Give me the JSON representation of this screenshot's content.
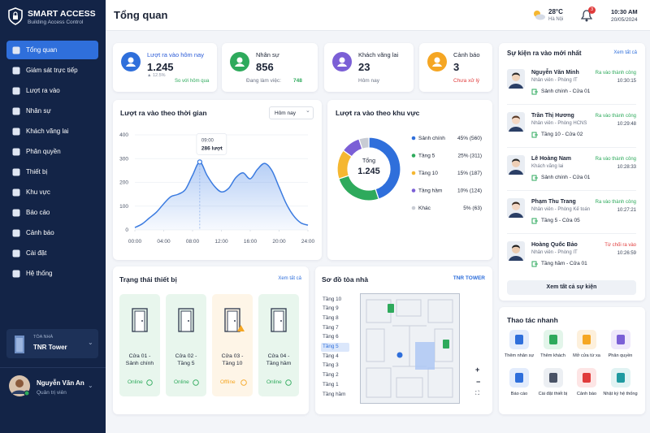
{
  "sidebar": {
    "brand": "SMART ACCESS",
    "tagline": "Building Access Control",
    "menu": [
      "Tổng quan",
      "Giám sát trực tiếp",
      "Lượt ra vào",
      "Nhân sự",
      "Khách vãng lai",
      "Phân quyền",
      "Thiết bị",
      "Khu vực",
      "Báo cáo",
      "Cảnh báo",
      "Cài đặt",
      "Hệ thống"
    ],
    "building_label": "TÒA NHÀ",
    "building": "TNR Tower",
    "user": {
      "name": "Nguyễn Văn An",
      "role": "Quản trị viên"
    }
  },
  "header": {
    "title": "Tổng quan",
    "temperature": "28°C",
    "city": "Hà Nội",
    "notifications": "3",
    "time": "10:30 AM",
    "date": "20/05/2024"
  },
  "stats": [
    {
      "label": "Lượt ra vào hôm nay",
      "value": "1.245",
      "delta": "▲ 12.5%",
      "note": "So với hôm qua"
    },
    {
      "label": "Nhân sự",
      "value": "856",
      "note": "Đang làm việc:",
      "note_value": "748"
    },
    {
      "label": "Khách vãng lai",
      "value": "23",
      "note": "Hôm nay"
    },
    {
      "label": "Cảnh báo",
      "value": "3",
      "note": "Chưa xử lý"
    }
  ],
  "chart_data": [
    {
      "type": "line",
      "title": "Lượt ra vào theo thời gian",
      "filter": "Hôm nay",
      "x": [
        0,
        1,
        2,
        3,
        4,
        5,
        6,
        7,
        8,
        9,
        10,
        11,
        12,
        13,
        14,
        15,
        16,
        17,
        18,
        19,
        20,
        21,
        22,
        23,
        24
      ],
      "series": [
        {
          "color": "#3b7be0",
          "values": [
            10,
            25,
            50,
            75,
            110,
            140,
            150,
            170,
            230,
            286,
            230,
            185,
            160,
            175,
            220,
            240,
            215,
            255,
            280,
            250,
            180,
            110,
            60,
            30,
            20
          ]
        }
      ],
      "xlim": [
        0,
        24
      ],
      "xticks": [
        {
          "value": 0,
          "label": "00:00"
        },
        {
          "value": 4,
          "label": "04:00"
        },
        {
          "value": 8,
          "label": "08:00"
        },
        {
          "value": 12,
          "label": "12:00"
        },
        {
          "value": 16,
          "label": "16:00"
        },
        {
          "value": 20,
          "label": "20:00"
        },
        {
          "value": 24,
          "label": "24:00"
        }
      ],
      "ylim": [
        0,
        400
      ],
      "yticks": [
        0,
        100,
        200,
        300,
        400
      ],
      "grid": true,
      "annotation": {
        "x": 9,
        "title": "09:00",
        "text": "286 lượt"
      }
    },
    {
      "type": "pie",
      "title": "Lượt ra vào theo khu vực",
      "categories": [
        "Sảnh chính",
        "Tầng 5",
        "Tầng 10",
        "Tầng hầm",
        "Khác"
      ],
      "values": [
        560,
        311,
        187,
        124,
        63
      ],
      "value_labels": [
        "45% (560)",
        "25% (311)",
        "15% (187)",
        "10% (124)",
        "5% (63)"
      ],
      "colors": [
        "#2f6fdb",
        "#2eaa5c",
        "#f5b731",
        "#7b5fd6",
        "#c8ccd4"
      ],
      "center_label": "Tổng",
      "center_value": "1.245"
    }
  ],
  "events": {
    "title": "Sự kiện ra vào mới nhất",
    "link": "Xem tất cả",
    "button": "Xem tất cả sự kiện",
    "items": [
      {
        "name": "Nguyễn Văn Minh",
        "role": "Nhân viên - Phòng IT",
        "door": "Sảnh chính - Cửa 01",
        "status": "Ra vào thành công",
        "color": "#2eaa5c",
        "time": "10:30:15"
      },
      {
        "name": "Trần Thị Hương",
        "role": "Nhân viên - Phòng HCNS",
        "door": "Tầng 10 - Cửa 02",
        "status": "Ra vào thành công",
        "color": "#2eaa5c",
        "time": "10:29:48"
      },
      {
        "name": "Lê Hoàng Nam",
        "role": "Khách vãng lai",
        "door": "Sảnh chính - Cửa 01",
        "status": "Ra vào thành công",
        "color": "#2eaa5c",
        "time": "10:28:33"
      },
      {
        "name": "Phạm Thu Trang",
        "role": "Nhân viên - Phòng Kế toán",
        "door": "Tầng 5 - Cửa 05",
        "status": "Ra vào thành công",
        "color": "#2eaa5c",
        "time": "10:27:21"
      },
      {
        "name": "Hoàng Quốc Bảo",
        "role": "Nhân viên - Phòng IT",
        "door": "Tầng hầm - Cửa 01",
        "status": "Từ chối ra vào",
        "color": "#e03b3b",
        "time": "10:26:59"
      }
    ]
  },
  "devices": {
    "title": "Trạng thái thiết bị",
    "link": "Xem tất cả",
    "items": [
      {
        "name": "Cửa 01 - Sảnh chính",
        "status": "Online",
        "color": "#2eaa5c"
      },
      {
        "name": "Cửa 02 - Tầng 5",
        "status": "Online",
        "color": "#2eaa5c"
      },
      {
        "name": "Cửa 03 - Tầng 10",
        "status": "Offline",
        "color": "#f5a623"
      },
      {
        "name": "Cửa 04 - Tầng hầm",
        "status": "Online",
        "color": "#2eaa5c"
      }
    ]
  },
  "building_map": {
    "title": "Sơ đồ tòa nhà",
    "building": "TNR TOWER",
    "floors": [
      "Tầng 10",
      "Tầng 9",
      "Tầng 8",
      "Tầng 7",
      "Tầng 6",
      "Tầng 5",
      "Tầng 4",
      "Tầng 3",
      "Tầng 2",
      "Tầng 1",
      "Tầng hầm"
    ]
  },
  "quick_actions": {
    "title": "Thao tác nhanh",
    "items": [
      "Thêm nhân sự",
      "Thêm khách",
      "Mở cửa từ xa",
      "Phân quyền",
      "Báo cáo",
      "Cài đặt thiết bị",
      "Cảnh báo",
      "Nhật ký hệ thống"
    ]
  }
}
